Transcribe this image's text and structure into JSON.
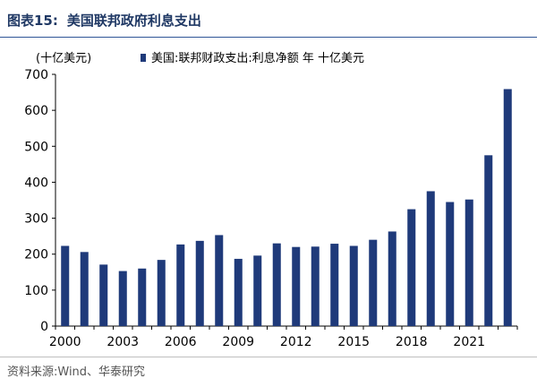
{
  "header": {
    "label": "图表15:",
    "title": "美国联邦政府利息支出"
  },
  "footer": {
    "source": "资料来源:Wind、华泰研究"
  },
  "colors": {
    "bar": "#1f3a7a",
    "title": "#1f3864",
    "rule": "#2f5597"
  },
  "chart_data": {
    "type": "bar",
    "unit_label": "(十亿美元)",
    "legend": "美国:联邦财政支出:利息净额 年 十亿美元",
    "legend_placement": "top",
    "x": [
      2000,
      2001,
      2002,
      2003,
      2004,
      2005,
      2006,
      2007,
      2008,
      2009,
      2010,
      2011,
      2012,
      2013,
      2014,
      2015,
      2016,
      2017,
      2018,
      2019,
      2020,
      2021,
      2022,
      2023
    ],
    "values": [
      223,
      206,
      171,
      153,
      160,
      184,
      227,
      237,
      253,
      187,
      196,
      230,
      220,
      221,
      229,
      223,
      240,
      263,
      325,
      375,
      345,
      352,
      475,
      659
    ],
    "x_tick_labels": [
      "2000",
      "2003",
      "2006",
      "2009",
      "2012",
      "2015",
      "2018",
      "2021"
    ],
    "y_ticks": [
      "0",
      "100",
      "200",
      "300",
      "400",
      "500",
      "600",
      "700"
    ],
    "ylim": [
      0,
      700
    ],
    "grid": false
  }
}
